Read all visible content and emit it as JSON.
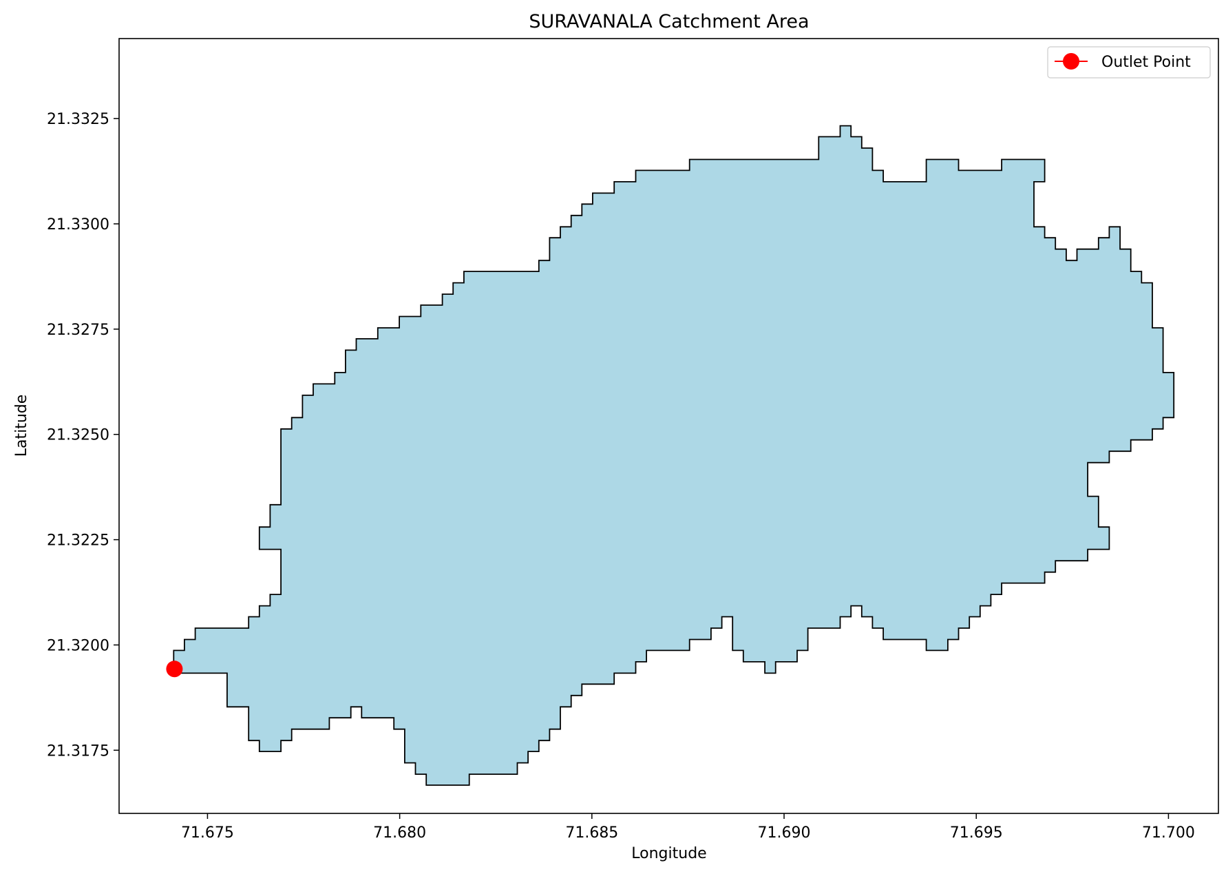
{
  "chart_data": {
    "type": "map",
    "title": "SURAVANALA Catchment Area",
    "xlabel": "Longitude",
    "ylabel": "Latitude",
    "xlim": [
      71.6727,
      71.7013
    ],
    "ylim": [
      21.316,
      21.3344
    ],
    "x_ticks": [
      {
        "value": 71.675,
        "label": "71.675"
      },
      {
        "value": 71.68,
        "label": "71.680"
      },
      {
        "value": 71.685,
        "label": "71.685"
      },
      {
        "value": 71.69,
        "label": "71.690"
      },
      {
        "value": 71.695,
        "label": "71.695"
      },
      {
        "value": 71.7,
        "label": "71.700"
      }
    ],
    "y_ticks": [
      {
        "value": 21.3175,
        "label": "21.3175"
      },
      {
        "value": 21.32,
        "label": "21.3200"
      },
      {
        "value": 21.3225,
        "label": "21.3225"
      },
      {
        "value": 21.325,
        "label": "21.3250"
      },
      {
        "value": 21.3275,
        "label": "21.3275"
      },
      {
        "value": 21.33,
        "label": "21.3300"
      },
      {
        "value": 21.3325,
        "label": "21.3325"
      }
    ],
    "catchment": {
      "fill_color": "#add8e6",
      "edge_color": "#000000",
      "boundary": [
        [
          71.67412,
          21.3194
        ],
        [
          71.67412,
          21.31987
        ],
        [
          71.6744,
          21.31987
        ],
        [
          71.6744,
          21.32013
        ],
        [
          71.67468,
          21.32013
        ],
        [
          71.67468,
          21.3204
        ],
        [
          71.67607,
          21.3204
        ],
        [
          71.67607,
          21.32067
        ],
        [
          71.67635,
          21.32067
        ],
        [
          71.67635,
          21.32093
        ],
        [
          71.67663,
          21.32093
        ],
        [
          71.67663,
          21.3212
        ],
        [
          71.67691,
          21.3212
        ],
        [
          71.67691,
          21.32227
        ],
        [
          71.67635,
          21.32227
        ],
        [
          71.67635,
          21.3228
        ],
        [
          71.67663,
          21.3228
        ],
        [
          71.67663,
          21.32333
        ],
        [
          71.67691,
          21.32333
        ],
        [
          71.67691,
          21.32513
        ],
        [
          71.67719,
          21.32513
        ],
        [
          71.67719,
          21.3254
        ],
        [
          71.67747,
          21.3254
        ],
        [
          71.67747,
          21.32593
        ],
        [
          71.67775,
          21.32593
        ],
        [
          71.67775,
          21.3262
        ],
        [
          71.67831,
          21.3262
        ],
        [
          71.67831,
          21.32647
        ],
        [
          71.67859,
          21.32647
        ],
        [
          71.67859,
          21.327
        ],
        [
          71.67887,
          21.327
        ],
        [
          71.67887,
          21.32727
        ],
        [
          71.67943,
          21.32727
        ],
        [
          71.67943,
          21.32753
        ],
        [
          71.67999,
          21.32753
        ],
        [
          71.67999,
          21.3278
        ],
        [
          71.68055,
          21.3278
        ],
        [
          71.68055,
          21.32807
        ],
        [
          71.68111,
          21.32807
        ],
        [
          71.68111,
          21.32833
        ],
        [
          71.68139,
          21.32833
        ],
        [
          71.68139,
          21.3286
        ],
        [
          71.68167,
          21.3286
        ],
        [
          71.68167,
          21.32887
        ],
        [
          71.68362,
          21.32887
        ],
        [
          71.68362,
          21.32913
        ],
        [
          71.6839,
          21.32913
        ],
        [
          71.6839,
          21.32967
        ],
        [
          71.68418,
          21.32967
        ],
        [
          71.68418,
          21.32993
        ],
        [
          71.68446,
          21.32993
        ],
        [
          71.68446,
          21.3302
        ],
        [
          71.68474,
          21.3302
        ],
        [
          71.68474,
          21.33047
        ],
        [
          71.68502,
          21.33047
        ],
        [
          71.68502,
          21.33073
        ],
        [
          71.68558,
          21.33073
        ],
        [
          71.68558,
          21.331
        ],
        [
          71.68614,
          21.331
        ],
        [
          71.68614,
          21.33127
        ],
        [
          71.68754,
          21.33127
        ],
        [
          71.68754,
          21.33153
        ],
        [
          71.6909,
          21.33153
        ],
        [
          71.6909,
          21.33207
        ],
        [
          71.69146,
          21.33207
        ],
        [
          71.69146,
          21.33233
        ],
        [
          71.69174,
          21.33233
        ],
        [
          71.69174,
          21.33207
        ],
        [
          71.69202,
          21.33207
        ],
        [
          71.69202,
          21.3318
        ],
        [
          71.6923,
          21.3318
        ],
        [
          71.6923,
          21.33127
        ],
        [
          71.69258,
          21.33127
        ],
        [
          71.69258,
          21.331
        ],
        [
          71.6937,
          21.331
        ],
        [
          71.6937,
          21.33153
        ],
        [
          71.69454,
          21.33153
        ],
        [
          71.69454,
          21.33127
        ],
        [
          71.69566,
          21.33127
        ],
        [
          71.69566,
          21.33153
        ],
        [
          71.69678,
          21.33153
        ],
        [
          71.69678,
          21.331
        ],
        [
          71.6965,
          21.331
        ],
        [
          71.6965,
          21.32993
        ],
        [
          71.69678,
          21.32993
        ],
        [
          71.69678,
          21.32967
        ],
        [
          71.69706,
          21.32967
        ],
        [
          71.69706,
          21.3294
        ],
        [
          71.69734,
          21.3294
        ],
        [
          71.69734,
          21.32913
        ],
        [
          71.69762,
          21.32913
        ],
        [
          71.69762,
          21.3294
        ],
        [
          71.69818,
          21.3294
        ],
        [
          71.69818,
          21.32967
        ],
        [
          71.69846,
          21.32967
        ],
        [
          71.69846,
          21.32993
        ],
        [
          71.69874,
          21.32993
        ],
        [
          71.69874,
          21.3294
        ],
        [
          71.69902,
          21.3294
        ],
        [
          71.69902,
          21.32887
        ],
        [
          71.6993,
          21.32887
        ],
        [
          71.6993,
          21.3286
        ],
        [
          71.69958,
          21.3286
        ],
        [
          71.69958,
          21.32753
        ],
        [
          71.69986,
          21.32753
        ],
        [
          71.69986,
          21.32647
        ],
        [
          71.70014,
          21.32647
        ],
        [
          71.70014,
          21.3254
        ],
        [
          71.69986,
          21.3254
        ],
        [
          71.69986,
          21.32513
        ],
        [
          71.69958,
          21.32513
        ],
        [
          71.69958,
          21.32487
        ],
        [
          71.69902,
          21.32487
        ],
        [
          71.69902,
          21.3246
        ],
        [
          71.69846,
          21.3246
        ],
        [
          71.69846,
          21.32433
        ],
        [
          71.6979,
          21.32433
        ],
        [
          71.6979,
          21.32353
        ],
        [
          71.69818,
          21.32353
        ],
        [
          71.69818,
          21.3228
        ],
        [
          71.69846,
          21.3228
        ],
        [
          71.69846,
          21.32227
        ],
        [
          71.6979,
          21.32227
        ],
        [
          71.6979,
          21.322
        ],
        [
          71.69706,
          21.322
        ],
        [
          71.69706,
          21.32173
        ],
        [
          71.69678,
          21.32173
        ],
        [
          71.69678,
          21.32147
        ],
        [
          71.69566,
          21.32147
        ],
        [
          71.69566,
          21.3212
        ],
        [
          71.69538,
          21.3212
        ],
        [
          71.69538,
          21.32093
        ],
        [
          71.6951,
          21.32093
        ],
        [
          71.6951,
          21.32067
        ],
        [
          71.69482,
          21.32067
        ],
        [
          71.69482,
          21.3204
        ],
        [
          71.69454,
          21.3204
        ],
        [
          71.69454,
          21.32013
        ],
        [
          71.69426,
          21.32013
        ],
        [
          71.69426,
          21.31987
        ],
        [
          71.6937,
          21.31987
        ],
        [
          71.6937,
          21.32013
        ],
        [
          71.69258,
          21.32013
        ],
        [
          71.69258,
          21.3204
        ],
        [
          71.6923,
          21.3204
        ],
        [
          71.6923,
          21.32067
        ],
        [
          71.69202,
          21.32067
        ],
        [
          71.69202,
          21.32093
        ],
        [
          71.69174,
          21.32093
        ],
        [
          71.69174,
          21.32067
        ],
        [
          71.69146,
          21.32067
        ],
        [
          71.69146,
          21.3204
        ],
        [
          71.69062,
          21.3204
        ],
        [
          71.69062,
          21.31987
        ],
        [
          71.69034,
          21.31987
        ],
        [
          71.69034,
          21.3196
        ],
        [
          71.68978,
          21.3196
        ],
        [
          71.68978,
          21.31933
        ],
        [
          71.6895,
          21.31933
        ],
        [
          71.6895,
          21.3196
        ],
        [
          71.68894,
          21.3196
        ],
        [
          71.68894,
          21.31987
        ],
        [
          71.68866,
          21.31987
        ],
        [
          71.68866,
          21.32067
        ],
        [
          71.68838,
          21.32067
        ],
        [
          71.68838,
          21.3204
        ],
        [
          71.6881,
          21.3204
        ],
        [
          71.6881,
          21.32013
        ],
        [
          71.68754,
          21.32013
        ],
        [
          71.68754,
          21.31987
        ],
        [
          71.68642,
          21.31987
        ],
        [
          71.68642,
          21.3196
        ],
        [
          71.68614,
          21.3196
        ],
        [
          71.68614,
          21.31933
        ],
        [
          71.68558,
          21.31933
        ],
        [
          71.68558,
          21.31907
        ],
        [
          71.68474,
          21.31907
        ],
        [
          71.68474,
          21.3188
        ],
        [
          71.68446,
          21.3188
        ],
        [
          71.68446,
          21.31853
        ],
        [
          71.68418,
          21.31853
        ],
        [
          71.68418,
          21.318
        ],
        [
          71.6839,
          21.318
        ],
        [
          71.6839,
          21.31773
        ],
        [
          71.68362,
          21.31773
        ],
        [
          71.68362,
          21.31747
        ],
        [
          71.68334,
          21.31747
        ],
        [
          71.68334,
          21.3172
        ],
        [
          71.68306,
          21.3172
        ],
        [
          71.68306,
          21.31693
        ],
        [
          71.68181,
          21.31693
        ],
        [
          71.68181,
          21.31667
        ],
        [
          71.68069,
          21.31667
        ],
        [
          71.68069,
          21.31693
        ],
        [
          71.68041,
          21.31693
        ],
        [
          71.68041,
          21.3172
        ],
        [
          71.68013,
          21.3172
        ],
        [
          71.68013,
          21.318
        ],
        [
          71.67985,
          21.318
        ],
        [
          71.67985,
          21.31827
        ],
        [
          71.67901,
          21.31827
        ],
        [
          71.67901,
          21.31853
        ],
        [
          71.67873,
          21.31853
        ],
        [
          71.67873,
          21.31827
        ],
        [
          71.67817,
          21.31827
        ],
        [
          71.67817,
          21.318
        ],
        [
          71.67719,
          21.318
        ],
        [
          71.67719,
          21.31773
        ],
        [
          71.67691,
          21.31773
        ],
        [
          71.67691,
          21.31747
        ],
        [
          71.67635,
          21.31747
        ],
        [
          71.67635,
          21.31773
        ],
        [
          71.67607,
          21.31773
        ],
        [
          71.67607,
          21.31853
        ],
        [
          71.67551,
          21.31853
        ],
        [
          71.67551,
          21.31933
        ],
        [
          71.67412,
          21.31933
        ],
        [
          71.67412,
          21.3194
        ]
      ]
    },
    "outlet": {
      "lon": 71.67414,
      "lat": 21.31943,
      "color": "#ff0000"
    },
    "legend": {
      "position": "top-right",
      "entries": [
        {
          "label": "Outlet Point",
          "color": "#ff0000"
        }
      ]
    }
  }
}
